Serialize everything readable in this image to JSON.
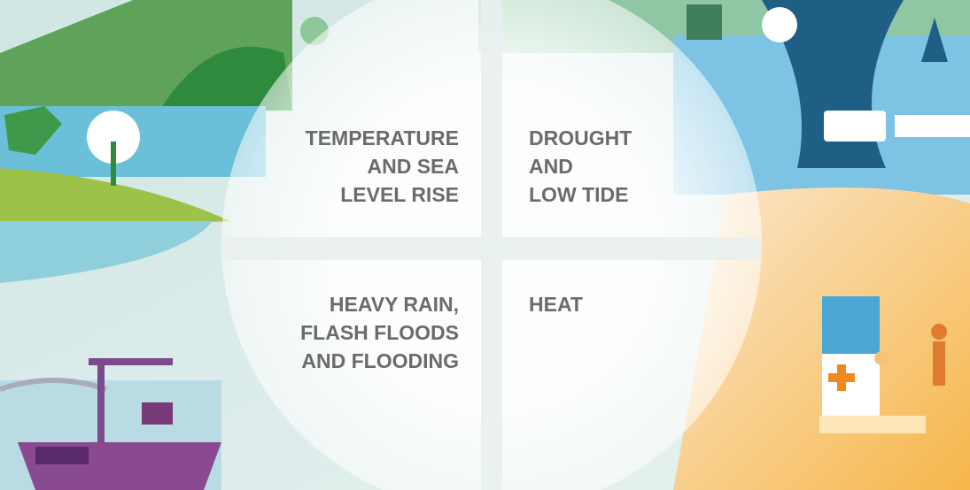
{
  "quadrants": [
    {
      "lines": [
        "TEMPERATURE",
        "AND SEA",
        "LEVEL RISE"
      ]
    },
    {
      "lines": [
        "DROUGHT",
        "AND",
        "LOW TIDE"
      ]
    },
    {
      "lines": [
        "HEAVY RAIN,",
        "FLASH FLOODS",
        "AND FLOODING"
      ]
    },
    {
      "lines": [
        "HEAT"
      ]
    }
  ]
}
